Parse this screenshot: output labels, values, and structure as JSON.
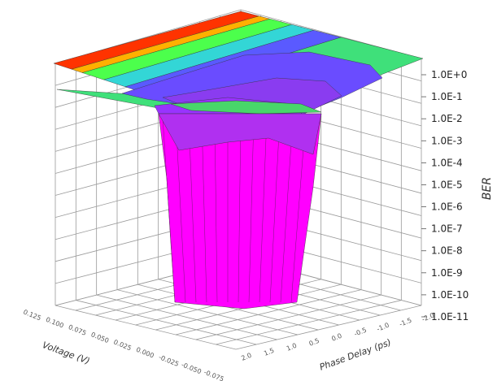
{
  "chart_data": {
    "type": "surface3d",
    "title": "",
    "xlabel": "Voltage (V)",
    "ylabel": "Phase Delay (ps)",
    "zlabel": "BER",
    "z_scale": "log",
    "z_ticks": [
      "1.0E+0",
      "1.0E-1",
      "1.0E-2",
      "1.0E-3",
      "1.0E-4",
      "1.0E-5",
      "1.0E-6",
      "1.0E-7",
      "1.0E-8",
      "1.0E-9",
      "1.0E-10",
      "1.0E-11"
    ],
    "zlim": [
      1e-11,
      1
    ],
    "x_ticks": [
      "0.125",
      "0.100",
      "0.075",
      "0.050",
      "0.025",
      "0.000",
      "-0.025",
      "-0.050",
      "-0.075"
    ],
    "y_ticks": [
      "2.0",
      "1.5",
      "1.0",
      "0.5",
      "0.0",
      "-0.5",
      "-1.0",
      "-1.5",
      "-2.0"
    ],
    "colormap": [
      "#ff00ff",
      "#9933ff",
      "#5a5aff",
      "#33d6d6",
      "#4cff4c",
      "#ffe133",
      "#ff3300"
    ],
    "grid": true
  }
}
